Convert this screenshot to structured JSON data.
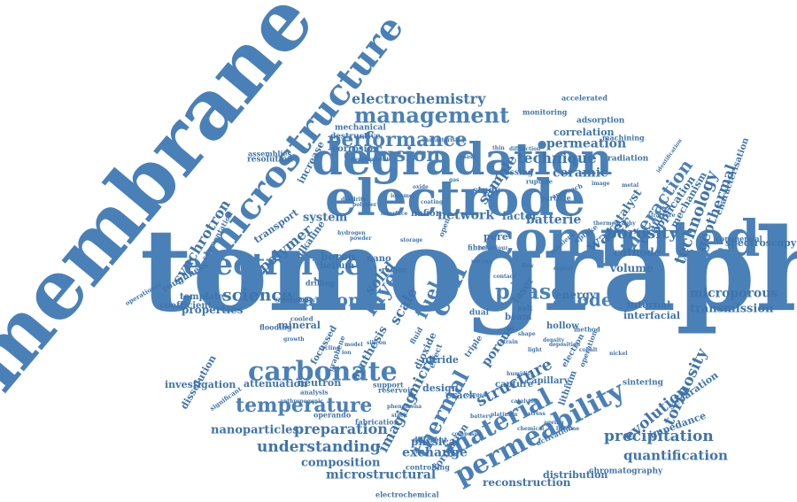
{
  "cloud": {
    "colors": {
      "primary": "#4a80b8",
      "secondary": "#3f74ad"
    },
    "words": [
      "tomography",
      "membrane",
      "electrode",
      "degradation",
      "computed",
      "microstructure",
      "electrolyte",
      "carbonate",
      "management",
      "performance",
      "temperature",
      "permeability",
      "material",
      "diffusion",
      "electrochemistry",
      "thermal",
      "understanding",
      "preparation",
      "precipitation",
      "quantification",
      "technology",
      "interaction",
      "synchrotron",
      "polymer",
      "phase",
      "layer",
      "solid",
      "cell",
      "fuel",
      "scale",
      "porosity",
      "water",
      "catalyst",
      "anode",
      "science",
      "carbon",
      "structure",
      "imaging",
      "micro",
      "nanoparticles",
      "composition",
      "microstructural",
      "reconstruction",
      "exchange",
      "evolution",
      "tortuosity",
      "geothermal",
      "transmission",
      "microporous",
      "spectroscopy",
      "characterisation",
      "application",
      "mechanism",
      "channel",
      "cathode",
      "volume",
      "energy",
      "internal",
      "interfacial",
      "separation",
      "impedance",
      "attenuation",
      "neutron",
      "investigation",
      "dissolution",
      "properties",
      "coefficient",
      "template",
      "roughness",
      "system",
      "network",
      "factor",
      "batterie",
      "nafion",
      "boron",
      "helium",
      "alkaline",
      "nano",
      "mineral",
      "transport",
      "crack",
      "distribution",
      "chromatography",
      "physical",
      "design",
      "capture",
      "capillary",
      "lithium",
      "sintering",
      "hollow",
      "porous",
      "nitride",
      "focussed",
      "synthesis",
      "dioxide",
      "laser",
      "beam",
      "permeation",
      "technique",
      "ceramic",
      "correlation",
      "machining",
      "adsorption",
      "radiation",
      "monitoring",
      "accelerated",
      "mechanical",
      "destructive",
      "corrosion",
      "assemblies",
      "resolution",
      "segmentation",
      "increase",
      "sample",
      "study",
      "pore",
      "dual",
      "commercial",
      "surface",
      "drilling",
      "flooding",
      "operando",
      "fabrication",
      "activation",
      "electrochemical",
      "controlling",
      "formation",
      "different",
      "reservoir",
      "support",
      "analysis",
      "significant",
      "operational",
      "graphene",
      "salt",
      "effect",
      "triple",
      "fibre",
      "region",
      "durability",
      "cooled",
      "pressing",
      "rupture",
      "particle",
      "gradient",
      "uptake",
      "method",
      "electron",
      "operation",
      "fluid",
      "open",
      "approach",
      "diffraction",
      "development",
      "characterising",
      "digital",
      "identification",
      "anthropogenic",
      "humidity",
      "hydrogen",
      "powder",
      "storage",
      "micron",
      "contact",
      "flow",
      "light",
      "deposition",
      "polymer",
      "ionomer",
      "coating",
      "gas",
      "oxide",
      "mass",
      "thin",
      "cycling",
      "model",
      "ion",
      "behaviour",
      "dendrite",
      "interface",
      "strain",
      "shape",
      "density",
      "cobalt",
      "nickel",
      "image",
      "metal",
      "thermography",
      "fracture",
      "silicon",
      "growth",
      "phenomena",
      "stack",
      "stress",
      "ageing",
      "lifetime",
      "battery",
      "composite",
      "chemical",
      "catalytic",
      "oxygen",
      "platinum"
    ]
  }
}
